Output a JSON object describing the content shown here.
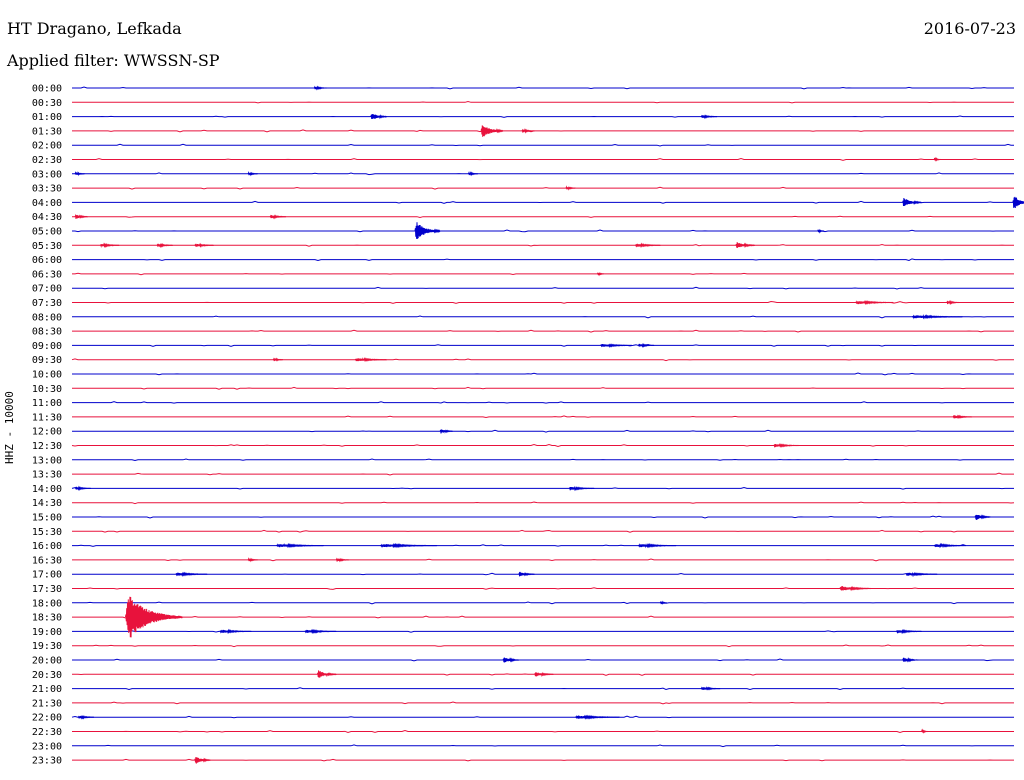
{
  "header": {
    "station": "HT Dragano, Lefkada",
    "date": "2016-07-23",
    "filter": "Applied filter: WWSSN-SP"
  },
  "chart_data": {
    "type": "line",
    "channel_label": "HHZ - 10000",
    "colors": {
      "even_rows": "#0000cc",
      "odd_rows": "#e8123c"
    },
    "x_range_minutes": [
      0,
      30
    ],
    "rows": [
      "00:00",
      "00:30",
      "01:00",
      "01:30",
      "02:00",
      "02:30",
      "03:00",
      "03:30",
      "04:00",
      "04:30",
      "05:00",
      "05:30",
      "06:00",
      "06:30",
      "07:00",
      "07:30",
      "08:00",
      "08:30",
      "09:00",
      "09:30",
      "10:00",
      "10:30",
      "11:00",
      "11:30",
      "12:00",
      "12:30",
      "13:00",
      "13:30",
      "14:00",
      "14:30",
      "15:00",
      "15:30",
      "16:00",
      "16:30",
      "17:00",
      "17:30",
      "18:00",
      "18:30",
      "19:00",
      "19:30",
      "20:00",
      "20:30",
      "21:00",
      "21:30",
      "22:00",
      "22:30",
      "23:00",
      "23:30"
    ],
    "events": [
      {
        "row": "00:00",
        "minute": 7.7,
        "amp": 2,
        "dur": 0.4
      },
      {
        "row": "01:00",
        "minute": 9.5,
        "amp": 5,
        "dur": 0.5
      },
      {
        "row": "01:00",
        "minute": 20.0,
        "amp": 2,
        "dur": 0.5
      },
      {
        "row": "01:30",
        "minute": 13.0,
        "amp": 9,
        "dur": 0.7
      },
      {
        "row": "01:30",
        "minute": 14.3,
        "amp": 2,
        "dur": 0.4
      },
      {
        "row": "02:30",
        "minute": 27.4,
        "amp": 2,
        "dur": 0.2
      },
      {
        "row": "03:00",
        "minute": 0.1,
        "amp": 2,
        "dur": 0.3
      },
      {
        "row": "03:00",
        "minute": 5.6,
        "amp": 2,
        "dur": 0.3
      },
      {
        "row": "03:00",
        "minute": 12.6,
        "amp": 2,
        "dur": 0.3
      },
      {
        "row": "03:30",
        "minute": 15.7,
        "amp": 2,
        "dur": 0.3
      },
      {
        "row": "04:00",
        "minute": 26.4,
        "amp": 6,
        "dur": 0.6
      },
      {
        "row": "04:00",
        "minute": 29.9,
        "amp": 9,
        "dur": 0.6
      },
      {
        "row": "04:30",
        "minute": 0.1,
        "amp": 3,
        "dur": 0.4
      },
      {
        "row": "04:30",
        "minute": 6.3,
        "amp": 2,
        "dur": 0.5
      },
      {
        "row": "05:00",
        "minute": 10.9,
        "amp": 12,
        "dur": 0.8
      },
      {
        "row": "05:00",
        "minute": 23.7,
        "amp": 2,
        "dur": 0.2
      },
      {
        "row": "05:30",
        "minute": 0.9,
        "amp": 2,
        "dur": 0.6
      },
      {
        "row": "05:30",
        "minute": 2.7,
        "amp": 2,
        "dur": 0.5
      },
      {
        "row": "05:30",
        "minute": 3.9,
        "amp": 2,
        "dur": 0.6
      },
      {
        "row": "05:30",
        "minute": 17.9,
        "amp": 2,
        "dur": 0.8
      },
      {
        "row": "05:30",
        "minute": 21.1,
        "amp": 4,
        "dur": 0.6
      },
      {
        "row": "06:30",
        "minute": 16.7,
        "amp": 2,
        "dur": 0.2
      },
      {
        "row": "07:30",
        "minute": 24.9,
        "amp": 2,
        "dur": 1.2
      },
      {
        "row": "07:30",
        "minute": 27.8,
        "amp": 2,
        "dur": 0.4
      },
      {
        "row": "08:00",
        "minute": 26.7,
        "amp": 2,
        "dur": 1.6
      },
      {
        "row": "09:00",
        "minute": 16.8,
        "amp": 2,
        "dur": 1.0
      },
      {
        "row": "09:00",
        "minute": 18.0,
        "amp": 2,
        "dur": 0.5
      },
      {
        "row": "09:30",
        "minute": 6.4,
        "amp": 2,
        "dur": 0.3
      },
      {
        "row": "09:30",
        "minute": 9.0,
        "amp": 2,
        "dur": 1.0
      },
      {
        "row": "11:30",
        "minute": 28.0,
        "amp": 2,
        "dur": 0.6
      },
      {
        "row": "12:00",
        "minute": 11.7,
        "amp": 3,
        "dur": 0.4
      },
      {
        "row": "12:30",
        "minute": 22.3,
        "amp": 2,
        "dur": 0.8
      },
      {
        "row": "14:00",
        "minute": 0.1,
        "amp": 2,
        "dur": 0.5
      },
      {
        "row": "14:00",
        "minute": 15.8,
        "amp": 2,
        "dur": 0.8
      },
      {
        "row": "15:00",
        "minute": 28.7,
        "amp": 4,
        "dur": 0.5
      },
      {
        "row": "16:00",
        "minute": 6.5,
        "amp": 2,
        "dur": 1.5
      },
      {
        "row": "16:00",
        "minute": 9.8,
        "amp": 2,
        "dur": 1.8
      },
      {
        "row": "16:00",
        "minute": 18.0,
        "amp": 2,
        "dur": 1.2
      },
      {
        "row": "16:00",
        "minute": 27.4,
        "amp": 2,
        "dur": 1.0
      },
      {
        "row": "16:30",
        "minute": 5.6,
        "amp": 2,
        "dur": 0.3
      },
      {
        "row": "16:30",
        "minute": 8.4,
        "amp": 2,
        "dur": 0.4
      },
      {
        "row": "17:00",
        "minute": 3.3,
        "amp": 2,
        "dur": 1.0
      },
      {
        "row": "17:00",
        "minute": 14.2,
        "amp": 3,
        "dur": 0.5
      },
      {
        "row": "17:00",
        "minute": 26.5,
        "amp": 2,
        "dur": 1.0
      },
      {
        "row": "17:30",
        "minute": 24.4,
        "amp": 3,
        "dur": 1.0
      },
      {
        "row": "18:00",
        "minute": 18.7,
        "amp": 2,
        "dur": 0.2
      },
      {
        "row": "18:30",
        "minute": 1.7,
        "amp": 28,
        "dur": 1.8
      },
      {
        "row": "19:00",
        "minute": 4.7,
        "amp": 2,
        "dur": 1.0
      },
      {
        "row": "19:00",
        "minute": 7.4,
        "amp": 2,
        "dur": 1.0
      },
      {
        "row": "19:00",
        "minute": 26.2,
        "amp": 2,
        "dur": 0.8
      },
      {
        "row": "20:00",
        "minute": 13.7,
        "amp": 4,
        "dur": 0.5
      },
      {
        "row": "20:00",
        "minute": 26.4,
        "amp": 3,
        "dur": 0.5
      },
      {
        "row": "20:30",
        "minute": 7.8,
        "amp": 5,
        "dur": 0.6
      },
      {
        "row": "20:30",
        "minute": 14.7,
        "amp": 3,
        "dur": 0.6
      },
      {
        "row": "21:00",
        "minute": 20.0,
        "amp": 2,
        "dur": 0.6
      },
      {
        "row": "22:00",
        "minute": 0.2,
        "amp": 2,
        "dur": 0.5
      },
      {
        "row": "22:00",
        "minute": 16.0,
        "amp": 2,
        "dur": 1.4
      },
      {
        "row": "22:30",
        "minute": 27.0,
        "amp": 2,
        "dur": 0.2
      },
      {
        "row": "23:30",
        "minute": 3.9,
        "amp": 5,
        "dur": 0.5
      }
    ]
  }
}
